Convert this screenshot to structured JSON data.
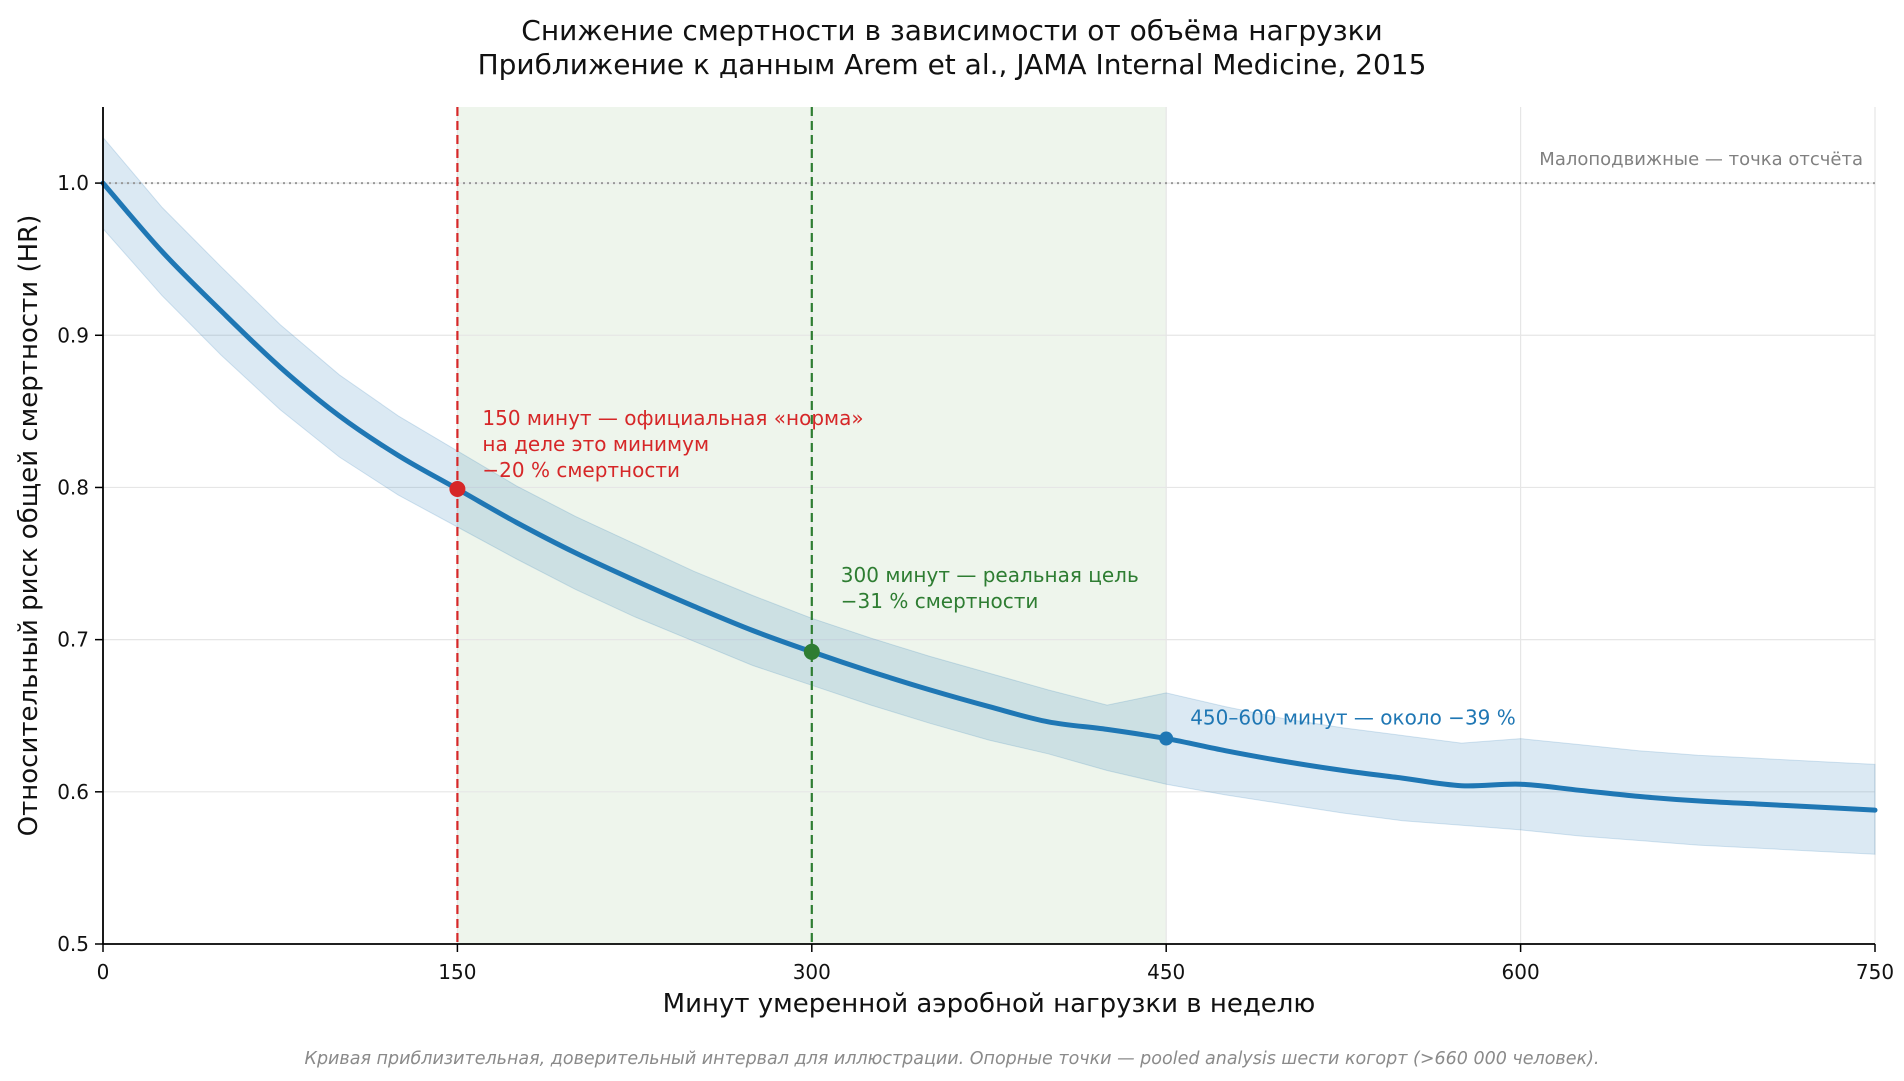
{
  "chart_data": {
    "type": "line",
    "title": "Снижение смертности в зависимости от объёма нагрузки",
    "subtitle": "Приближение к данным Arem et al., JAMA Internal Medicine, 2015",
    "xlabel": "Минут умеренной аэробной нагрузки в неделю",
    "ylabel": "Относительный риск общей смертности (HR)",
    "xlim": [
      0,
      750
    ],
    "ylim": [
      0.5,
      1.05
    ],
    "xticks": [
      0,
      150,
      300,
      450,
      600,
      750
    ],
    "yticks": [
      0.5,
      0.6,
      0.7,
      0.8,
      0.9,
      1.0
    ],
    "ytick_labels": [
      "0.5",
      "0.6",
      "0.7",
      "0.8",
      "0.9",
      "1.0"
    ],
    "grid": true,
    "curve": {
      "x": [
        0,
        25,
        50,
        75,
        100,
        125,
        150,
        175,
        200,
        225,
        250,
        275,
        300,
        325,
        350,
        375,
        400,
        425,
        450,
        475,
        500,
        525,
        550,
        575,
        600,
        625,
        650,
        675,
        700,
        725,
        750
      ],
      "y": [
        1.0,
        0.955,
        0.916,
        0.879,
        0.847,
        0.821,
        0.799,
        0.777,
        0.757,
        0.739,
        0.722,
        0.706,
        0.692,
        0.679,
        0.667,
        0.656,
        0.646,
        0.641,
        0.635,
        0.627,
        0.62,
        0.614,
        0.609,
        0.604,
        0.605,
        0.601,
        0.597,
        0.594,
        0.592,
        0.59,
        0.588
      ],
      "lower": [
        0.97,
        0.926,
        0.887,
        0.851,
        0.82,
        0.795,
        0.774,
        0.753,
        0.733,
        0.715,
        0.699,
        0.683,
        0.67,
        0.657,
        0.645,
        0.634,
        0.625,
        0.614,
        0.605,
        0.598,
        0.592,
        0.586,
        0.581,
        0.578,
        0.575,
        0.571,
        0.568,
        0.565,
        0.563,
        0.561,
        0.559
      ],
      "upper": [
        1.03,
        0.984,
        0.945,
        0.907,
        0.874,
        0.847,
        0.824,
        0.801,
        0.781,
        0.763,
        0.745,
        0.729,
        0.714,
        0.701,
        0.689,
        0.678,
        0.667,
        0.657,
        0.665,
        0.656,
        0.648,
        0.642,
        0.637,
        0.632,
        0.635,
        0.631,
        0.627,
        0.624,
        0.622,
        0.62,
        0.618
      ]
    },
    "highlight_range": [
      150,
      450
    ],
    "reference_line": {
      "y": 1.0,
      "label": "Малоподвижные — точка отсчёта"
    },
    "markers": [
      {
        "x": 150,
        "y": 0.799,
        "color": "#d62728",
        "vline": true,
        "label_lines": [
          "150 минут — официальная «норма»",
          "на деле это минимум",
          "−20 % смертности"
        ]
      },
      {
        "x": 300,
        "y": 0.692,
        "color": "#2e7d32",
        "vline": true,
        "label_lines": [
          "300 минут — реальная цель",
          "−31 % смертности"
        ]
      },
      {
        "x": 450,
        "y": 0.635,
        "color": "#1f77b4",
        "vline": false,
        "label_lines": [
          "450–600 минут — около −39 %"
        ]
      }
    ],
    "footnote": "Кривая приблизительная, доверительный интервал для иллюстрации. Опорные точки — pooled analysis шести когорт (>660 000 человек).",
    "colors": {
      "curve": "#1f77b4",
      "band": "#1f77b4",
      "highlight": "#e8f2e6",
      "reference": "#999999",
      "reference_text": "#808080"
    }
  }
}
